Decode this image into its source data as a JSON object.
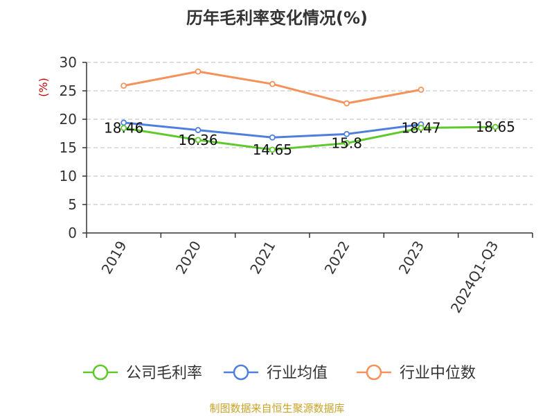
{
  "title": "历年毛利率变化情况(%)",
  "footer": "制图数据来自恒生聚源数据库",
  "chart_data": {
    "type": "line",
    "title": "历年毛利率变化情况(%)",
    "categories": [
      "2019",
      "2020",
      "2021",
      "2022",
      "2023",
      "2024Q1-Q3"
    ],
    "ylabel": "(%)",
    "ylim": [
      0,
      30
    ],
    "yticks": [
      0,
      5,
      10,
      15,
      20,
      25,
      30
    ],
    "grid": true,
    "legend_position": "bottom",
    "series": [
      {
        "name": "公司毛利率",
        "color": "#5ec92b",
        "values": [
          18.46,
          16.36,
          14.65,
          15.8,
          18.47,
          18.65
        ],
        "labels": [
          "18.46",
          "16.36",
          "14.65",
          "15.8",
          "18.47",
          "18.65"
        ]
      },
      {
        "name": "行业均值",
        "color": "#4f7fdc",
        "values": [
          19.4,
          18.1,
          16.8,
          17.4,
          19.1,
          null
        ]
      },
      {
        "name": "行业中位数",
        "color": "#f5915a",
        "values": [
          25.9,
          28.4,
          26.2,
          22.8,
          25.2,
          null
        ]
      }
    ]
  }
}
